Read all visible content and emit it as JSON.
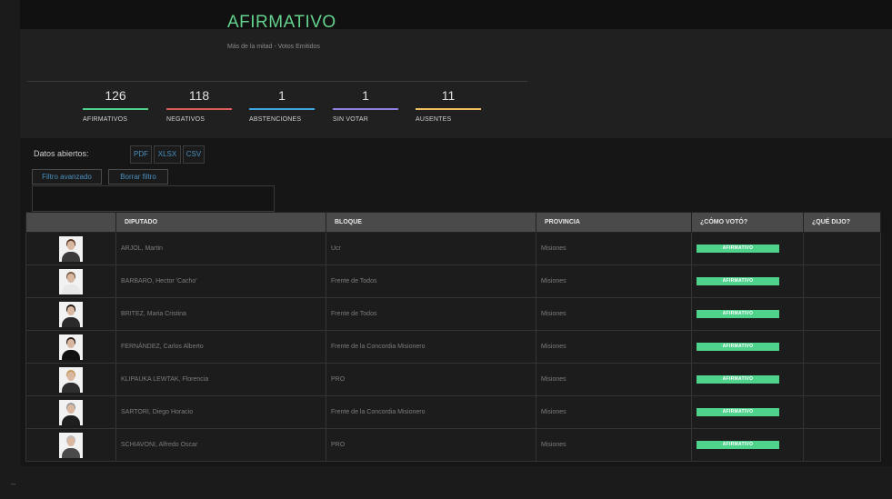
{
  "result": {
    "title": "AFIRMATIVO",
    "subtitle": "Más de la mitad - Votos Emitidos"
  },
  "stats": [
    {
      "value": "126",
      "label": "AFIRMATIVOS",
      "color": "#4fd38c"
    },
    {
      "value": "118",
      "label": "NEGATIVOS",
      "color": "#e05a5a"
    },
    {
      "value": "1",
      "label": "ABSTENCIONES",
      "color": "#3fa6e0"
    },
    {
      "value": "1",
      "label": "SIN VOTAR",
      "color": "#8f7fe0"
    },
    {
      "value": "11",
      "label": "AUSENTES",
      "color": "#f0c060"
    }
  ],
  "open_data": {
    "label": "Datos abiertos:",
    "formats": [
      "PDF",
      "XLSX",
      "CSV"
    ]
  },
  "filters": {
    "advanced": "Filtro avanzado",
    "clear": "Borrar filtro"
  },
  "table": {
    "columns": [
      "",
      "DIPUTADO",
      "BLOQUE",
      "PROVINCIA",
      "¿CÓMO VOTÓ?",
      "¿QUÉ DIJO?"
    ],
    "rows": [
      {
        "name": "ARJOL, Martin",
        "block": "Ucr",
        "province": "Misiones",
        "vote": "AFIRMATIVO",
        "said": ""
      },
      {
        "name": "BARBARO, Hector 'Cacho'",
        "block": "Frente de Todos",
        "province": "Misiones",
        "vote": "AFIRMATIVO",
        "said": ""
      },
      {
        "name": "BRITEZ, Maria Cristina",
        "block": "Frente de Todos",
        "province": "Misiones",
        "vote": "AFIRMATIVO",
        "said": ""
      },
      {
        "name": "FERNÁNDEZ, Carlos Alberto",
        "block": "Frente de la Concordia Misionero",
        "province": "Misiones",
        "vote": "AFIRMATIVO",
        "said": ""
      },
      {
        "name": "KLIPAUKA LEWTAK, Florencia",
        "block": "PRO",
        "province": "Misiones",
        "vote": "AFIRMATIVO",
        "said": ""
      },
      {
        "name": "SARTORI, Diego Horacio",
        "block": "Frente de la Concordia Misionero",
        "province": "Misiones",
        "vote": "AFIRMATIVO",
        "said": ""
      },
      {
        "name": "SCHIAVONI, Alfredo Oscar",
        "block": "PRO",
        "province": "Misiones",
        "vote": "AFIRMATIVO",
        "said": ""
      }
    ]
  },
  "avatars": [
    {
      "hair": "#5a3a26",
      "body": "#3a3a3a"
    },
    {
      "hair": "#7a5a44",
      "body": "#e8e8e8"
    },
    {
      "hair": "#1e1410",
      "body": "#2a2a2a"
    },
    {
      "hair": "#2a1e18",
      "body": "#101010"
    },
    {
      "hair": "#c89a5a",
      "body": "#2e2e2e"
    },
    {
      "hair": "#9a9a9a",
      "body": "#1e1e1e"
    },
    {
      "hair": "#bdbdbd",
      "body": "#4a4a4a"
    }
  ],
  "footer": {
    "mark": "--"
  }
}
